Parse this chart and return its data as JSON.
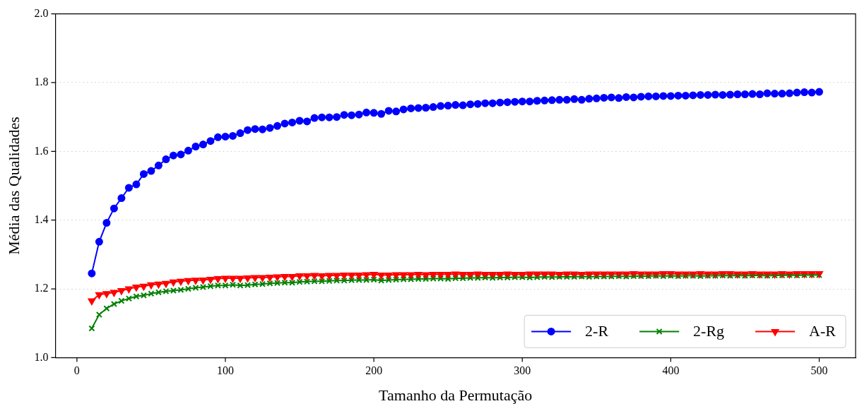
{
  "chart_data": {
    "type": "line",
    "xlabel": "Tamanho da Permutação",
    "ylabel": "Média das Qualidades",
    "x": [
      10,
      15,
      20,
      25,
      30,
      35,
      40,
      45,
      50,
      55,
      60,
      65,
      70,
      75,
      80,
      85,
      90,
      95,
      100,
      105,
      110,
      115,
      120,
      125,
      130,
      135,
      140,
      145,
      150,
      155,
      160,
      165,
      170,
      175,
      180,
      185,
      190,
      195,
      200,
      205,
      210,
      215,
      220,
      225,
      230,
      235,
      240,
      245,
      250,
      255,
      260,
      265,
      270,
      275,
      280,
      285,
      290,
      295,
      300,
      305,
      310,
      315,
      320,
      325,
      330,
      335,
      340,
      345,
      350,
      355,
      360,
      365,
      370,
      375,
      380,
      385,
      390,
      395,
      400,
      405,
      410,
      415,
      420,
      425,
      430,
      435,
      440,
      445,
      450,
      455,
      460,
      465,
      470,
      475,
      480,
      485,
      490,
      495,
      500
    ],
    "series": [
      {
        "name": "2-R",
        "color": "#0000ff",
        "marker": "circle",
        "values": [
          1.245,
          1.337,
          1.392,
          1.434,
          1.464,
          1.494,
          1.504,
          1.534,
          1.543,
          1.559,
          1.577,
          1.588,
          1.591,
          1.602,
          1.614,
          1.62,
          1.63,
          1.641,
          1.643,
          1.645,
          1.653,
          1.662,
          1.665,
          1.664,
          1.668,
          1.674,
          1.681,
          1.684,
          1.689,
          1.687,
          1.697,
          1.699,
          1.699,
          1.7,
          1.706,
          1.705,
          1.707,
          1.713,
          1.712,
          1.709,
          1.718,
          1.716,
          1.722,
          1.725,
          1.726,
          1.727,
          1.729,
          1.732,
          1.733,
          1.735,
          1.734,
          1.737,
          1.738,
          1.74,
          1.74,
          1.742,
          1.743,
          1.744,
          1.745,
          1.745,
          1.747,
          1.748,
          1.749,
          1.75,
          1.75,
          1.752,
          1.75,
          1.753,
          1.754,
          1.756,
          1.757,
          1.755,
          1.758,
          1.757,
          1.759,
          1.76,
          1.76,
          1.761,
          1.761,
          1.762,
          1.762,
          1.763,
          1.764,
          1.764,
          1.765,
          1.764,
          1.765,
          1.766,
          1.766,
          1.767,
          1.766,
          1.769,
          1.768,
          1.768,
          1.769,
          1.771,
          1.772,
          1.771,
          1.773
        ]
      },
      {
        "name": "2-Rg",
        "color": "#008000",
        "marker": "cross",
        "values": [
          1.085,
          1.125,
          1.143,
          1.156,
          1.165,
          1.172,
          1.178,
          1.181,
          1.186,
          1.19,
          1.193,
          1.195,
          1.197,
          1.2,
          1.203,
          1.205,
          1.208,
          1.21,
          1.21,
          1.212,
          1.21,
          1.211,
          1.213,
          1.214,
          1.216,
          1.217,
          1.218,
          1.218,
          1.22,
          1.221,
          1.222,
          1.222,
          1.223,
          1.224,
          1.224,
          1.225,
          1.226,
          1.226,
          1.227,
          1.224,
          1.226,
          1.227,
          1.228,
          1.228,
          1.229,
          1.229,
          1.23,
          1.23,
          1.229,
          1.231,
          1.231,
          1.232,
          1.232,
          1.233,
          1.232,
          1.233,
          1.233,
          1.234,
          1.234,
          1.233,
          1.234,
          1.235,
          1.234,
          1.235,
          1.235,
          1.235,
          1.236,
          1.235,
          1.236,
          1.236,
          1.236,
          1.237,
          1.236,
          1.237,
          1.237,
          1.237,
          1.238,
          1.237,
          1.238,
          1.237,
          1.238,
          1.238,
          1.237,
          1.238,
          1.238,
          1.239,
          1.238,
          1.239,
          1.238,
          1.239,
          1.239,
          1.238,
          1.239,
          1.239,
          1.24,
          1.239,
          1.24,
          1.24,
          1.24
        ]
      },
      {
        "name": "A-R",
        "color": "#ff0000",
        "marker": "triangle",
        "values": [
          1.165,
          1.183,
          1.186,
          1.19,
          1.195,
          1.2,
          1.205,
          1.208,
          1.212,
          1.214,
          1.216,
          1.22,
          1.222,
          1.224,
          1.225,
          1.226,
          1.228,
          1.23,
          1.231,
          1.231,
          1.231,
          1.232,
          1.233,
          1.233,
          1.234,
          1.235,
          1.236,
          1.236,
          1.238,
          1.238,
          1.239,
          1.238,
          1.239,
          1.239,
          1.24,
          1.24,
          1.24,
          1.241,
          1.242,
          1.24,
          1.24,
          1.241,
          1.241,
          1.241,
          1.242,
          1.241,
          1.242,
          1.242,
          1.242,
          1.243,
          1.242,
          1.242,
          1.243,
          1.242,
          1.242,
          1.242,
          1.243,
          1.242,
          1.242,
          1.243,
          1.243,
          1.243,
          1.243,
          1.242,
          1.243,
          1.243,
          1.242,
          1.243,
          1.243,
          1.243,
          1.243,
          1.243,
          1.243,
          1.244,
          1.243,
          1.243,
          1.243,
          1.244,
          1.244,
          1.243,
          1.243,
          1.243,
          1.244,
          1.243,
          1.243,
          1.244,
          1.244,
          1.243,
          1.243,
          1.244,
          1.243,
          1.243,
          1.243,
          1.244,
          1.243,
          1.244,
          1.244,
          1.244,
          1.244
        ]
      }
    ],
    "xlim": [
      -14.5,
      524.5
    ],
    "xticks": [
      0,
      100,
      200,
      300,
      400,
      500
    ],
    "ylim": [
      1,
      2
    ],
    "yticks": [
      {
        "value": 1,
        "label": "1.0"
      },
      {
        "value": 1.2,
        "label": "1.2"
      },
      {
        "value": 1.4,
        "label": "1.4"
      },
      {
        "value": 1.6,
        "label": "1.6"
      },
      {
        "value": 1.8,
        "label": "1.8"
      },
      {
        "value": 2,
        "label": "2.0"
      }
    ],
    "grid": "y",
    "legend": "bottom right",
    "line_style": "solid"
  }
}
